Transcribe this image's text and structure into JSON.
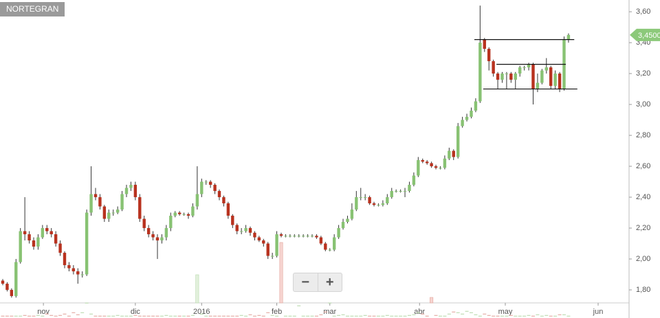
{
  "chart_data": {
    "type": "candlestick",
    "title": "NORTEGRAN",
    "up_color": "#88c273",
    "down_color": "#b8321f",
    "xlim": [
      -0.62,
      141.7
    ],
    "xticks": [
      {
        "value": 9.2,
        "label": "nov"
      },
      {
        "value": 30,
        "label": "dic"
      },
      {
        "value": 45,
        "label": "2016"
      },
      {
        "value": 62,
        "label": "feb"
      },
      {
        "value": 74,
        "label": "mar"
      },
      {
        "value": 94.3,
        "label": "abr"
      },
      {
        "value": 113.7,
        "label": "may"
      },
      {
        "value": 134.7,
        "label": "jun"
      }
    ],
    "ylim": [
      1.618,
      3.676
    ],
    "yticks": [
      {
        "value": 1.8,
        "label": "1,80"
      },
      {
        "value": 2.0,
        "label": "2,00"
      },
      {
        "value": 2.2,
        "label": "2,20"
      },
      {
        "value": 2.4,
        "label": "2,40"
      },
      {
        "value": 2.6,
        "label": "2,60"
      },
      {
        "value": 2.8,
        "label": "2,80"
      },
      {
        "value": 3.0,
        "label": "3,00"
      },
      {
        "value": 3.2,
        "label": "3,20"
      },
      {
        "value": 3.4,
        "label": "3,40"
      },
      {
        "value": 3.6,
        "label": "3,60"
      }
    ],
    "open": [
      1.86,
      1.84,
      1.8,
      1.76,
      1.98,
      2.18,
      2.16,
      2.12,
      2.08,
      2.14,
      2.2,
      2.18,
      2.16,
      2.1,
      2.04,
      1.96,
      1.94,
      1.92,
      1.9,
      1.9,
      2.3,
      2.42,
      2.4,
      2.34,
      2.26,
      2.3,
      2.3,
      2.32,
      2.42,
      2.46,
      2.48,
      2.4,
      2.26,
      2.2,
      2.16,
      2.14,
      2.12,
      2.14,
      2.2,
      2.28,
      2.3,
      2.29,
      2.29,
      2.28,
      2.34,
      2.42,
      2.5,
      2.5,
      2.48,
      2.44,
      2.4,
      2.36,
      2.28,
      2.22,
      2.18,
      2.18,
      2.2,
      2.17,
      2.14,
      2.12,
      2.1,
      2.02,
      2.02,
      2.16,
      2.15,
      2.15,
      2.15,
      2.15,
      2.15,
      2.15,
      2.15,
      2.15,
      2.14,
      2.1,
      2.06,
      2.06,
      2.14,
      2.2,
      2.24,
      2.26,
      2.32,
      2.4,
      2.4,
      2.4,
      2.36,
      2.35,
      2.35,
      2.36,
      2.4,
      2.44,
      2.44,
      2.44,
      2.44,
      2.48,
      2.54,
      2.64,
      2.63,
      2.62,
      2.6,
      2.59,
      2.59,
      2.65,
      2.7,
      2.66,
      2.86,
      2.9,
      2.92,
      2.96,
      3.02,
      3.42,
      3.36,
      3.28,
      3.2,
      3.16,
      3.2,
      3.2,
      3.16,
      3.2,
      3.24,
      3.24,
      3.26,
      3.1,
      3.14,
      3.22,
      3.24,
      3.12,
      3.2,
      3.1,
      3.42
    ],
    "high": [
      1.87,
      1.85,
      1.81,
      2.0,
      2.2,
      2.4,
      2.18,
      2.14,
      2.16,
      2.22,
      2.22,
      2.2,
      2.18,
      2.12,
      2.05,
      1.98,
      1.96,
      1.94,
      1.92,
      2.32,
      2.6,
      2.46,
      2.42,
      2.35,
      2.32,
      2.32,
      2.34,
      2.44,
      2.48,
      2.5,
      2.5,
      2.42,
      2.28,
      2.22,
      2.18,
      2.16,
      2.16,
      2.22,
      2.3,
      2.31,
      2.31,
      2.3,
      2.3,
      2.36,
      2.6,
      2.52,
      2.51,
      2.51,
      2.49,
      2.45,
      2.41,
      2.37,
      2.29,
      2.23,
      2.2,
      2.22,
      2.21,
      2.18,
      2.15,
      2.13,
      2.11,
      2.04,
      2.18,
      2.17,
      2.16,
      2.16,
      2.16,
      2.16,
      2.16,
      2.16,
      2.16,
      2.16,
      2.15,
      2.11,
      2.07,
      2.16,
      2.22,
      2.26,
      2.28,
      2.36,
      2.44,
      2.46,
      2.42,
      2.41,
      2.37,
      2.36,
      2.38,
      2.42,
      2.46,
      2.45,
      2.45,
      2.46,
      2.5,
      2.56,
      2.66,
      2.65,
      2.64,
      2.63,
      2.61,
      2.6,
      2.67,
      2.72,
      2.71,
      2.88,
      2.92,
      2.94,
      2.98,
      3.04,
      3.64,
      3.43,
      3.37,
      3.29,
      3.21,
      3.21,
      3.21,
      3.21,
      3.21,
      3.25,
      3.25,
      3.27,
      3.27,
      3.2,
      3.23,
      3.3,
      3.25,
      3.22,
      3.21,
      3.44,
      3.46
    ],
    "low": [
      1.83,
      1.79,
      1.75,
      1.75,
      1.97,
      2.12,
      2.1,
      2.06,
      2.06,
      2.13,
      2.16,
      2.14,
      2.08,
      2.02,
      1.94,
      1.92,
      1.9,
      1.84,
      1.88,
      1.89,
      2.28,
      2.38,
      2.32,
      2.24,
      2.24,
      2.28,
      2.29,
      2.31,
      2.4,
      2.44,
      2.38,
      2.24,
      2.18,
      2.14,
      2.12,
      2.0,
      2.1,
      2.12,
      2.18,
      2.27,
      2.28,
      2.28,
      2.26,
      2.27,
      2.32,
      2.4,
      2.48,
      2.46,
      2.42,
      2.38,
      2.34,
      2.26,
      2.2,
      2.16,
      2.16,
      2.17,
      2.15,
      2.12,
      2.11,
      2.08,
      2.0,
      2.0,
      2.01,
      2.14,
      2.14,
      2.14,
      2.14,
      2.14,
      2.14,
      2.14,
      2.14,
      2.13,
      2.09,
      2.05,
      2.05,
      2.05,
      2.13,
      2.19,
      2.23,
      2.25,
      2.31,
      2.38,
      2.38,
      2.35,
      2.34,
      2.34,
      2.34,
      2.35,
      2.39,
      2.43,
      2.43,
      2.4,
      2.43,
      2.47,
      2.53,
      2.62,
      2.61,
      2.59,
      2.58,
      2.58,
      2.58,
      2.64,
      2.64,
      2.65,
      2.85,
      2.89,
      2.91,
      2.95,
      3.01,
      3.34,
      3.22,
      3.18,
      3.1,
      3.14,
      3.1,
      3.14,
      3.1,
      3.18,
      3.22,
      3.22,
      3.0,
      3.08,
      3.13,
      3.2,
      3.1,
      3.1,
      3.08,
      3.09,
      3.4
    ],
    "close": [
      1.84,
      1.8,
      1.76,
      1.98,
      2.18,
      2.16,
      2.12,
      2.08,
      2.14,
      2.2,
      2.18,
      2.16,
      2.1,
      2.04,
      1.96,
      1.94,
      1.92,
      1.9,
      1.9,
      2.3,
      2.42,
      2.4,
      2.34,
      2.26,
      2.3,
      2.3,
      2.32,
      2.42,
      2.46,
      2.48,
      2.4,
      2.26,
      2.2,
      2.16,
      2.14,
      2.12,
      2.14,
      2.2,
      2.28,
      2.3,
      2.29,
      2.29,
      2.28,
      2.34,
      2.42,
      2.5,
      2.5,
      2.48,
      2.44,
      2.4,
      2.36,
      2.28,
      2.22,
      2.18,
      2.18,
      2.2,
      2.17,
      2.14,
      2.12,
      2.1,
      2.02,
      2.02,
      2.16,
      2.15,
      2.15,
      2.15,
      2.15,
      2.15,
      2.15,
      2.15,
      2.15,
      2.14,
      2.1,
      2.06,
      2.06,
      2.14,
      2.2,
      2.24,
      2.26,
      2.32,
      2.4,
      2.4,
      2.4,
      2.36,
      2.35,
      2.35,
      2.36,
      2.4,
      2.44,
      2.44,
      2.44,
      2.44,
      2.48,
      2.54,
      2.64,
      2.63,
      2.62,
      2.6,
      2.59,
      2.59,
      2.65,
      2.7,
      2.66,
      2.86,
      2.9,
      2.92,
      2.96,
      3.02,
      3.4,
      3.36,
      3.28,
      3.2,
      3.16,
      3.2,
      3.2,
      3.16,
      3.2,
      3.24,
      3.24,
      3.26,
      3.1,
      3.14,
      3.22,
      3.24,
      3.12,
      3.2,
      3.1,
      3.42,
      3.45
    ],
    "volume": [
      3,
      3,
      3,
      3,
      3,
      4,
      3,
      3,
      4,
      3,
      6,
      4,
      3,
      4,
      6,
      3,
      8,
      5,
      8,
      22,
      6,
      3,
      3,
      3,
      3,
      3,
      4,
      3,
      3,
      3,
      4,
      3,
      3,
      3,
      3,
      3,
      3,
      4,
      3,
      3,
      3,
      3,
      3,
      4,
      63,
      6,
      3,
      3,
      3,
      3,
      3,
      3,
      3,
      3,
      4,
      3,
      5,
      3,
      4,
      3,
      8,
      4,
      3,
      110,
      3,
      3,
      3,
      18,
      3,
      3,
      3,
      3,
      5,
      9,
      22,
      3,
      4,
      5,
      3,
      3,
      3,
      3,
      4,
      3,
      3,
      3,
      3,
      4,
      3,
      3,
      3,
      3,
      4,
      5,
      8,
      6,
      3,
      30,
      4,
      3,
      3,
      6,
      9,
      8,
      6,
      10,
      8,
      5,
      3,
      6,
      4,
      3,
      3,
      3,
      3,
      4,
      3,
      3,
      3,
      4,
      3,
      5,
      3,
      4,
      3,
      3,
      5,
      5,
      3
    ],
    "y2lim": [
      0,
      463
    ],
    "hlines": [
      {
        "value": 3.42,
        "from": 106.7,
        "to": 129.3
      },
      {
        "value": 3.26,
        "from": 111.7,
        "to": 127.4
      },
      {
        "value": 3.1,
        "from": 108.7,
        "to": 130.0
      }
    ],
    "last_label": {
      "value": 3.45,
      "label": "3,4500"
    }
  }
}
